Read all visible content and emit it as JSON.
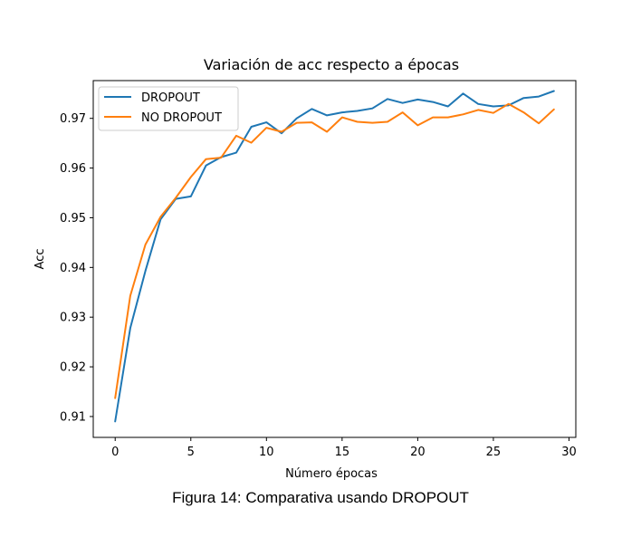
{
  "caption": "Figura 14: Comparativa usando DROPOUT",
  "chart_data": {
    "type": "line",
    "title": "Variación de acc respecto a épocas",
    "xlabel": "Número épocas",
    "ylabel": "Acc",
    "xlim": [
      -1.45,
      30.45
    ],
    "ylim": [
      0.9058,
      0.9776
    ],
    "xticks": [
      0,
      5,
      10,
      15,
      20,
      25,
      30
    ],
    "yticks": [
      0.91,
      0.92,
      0.93,
      0.94,
      0.95,
      0.96,
      0.97
    ],
    "ytick_labels": [
      "0.91",
      "0.92",
      "0.93",
      "0.94",
      "0.95",
      "0.96",
      "0.97"
    ],
    "grid": false,
    "legend": "upper left",
    "x": [
      0,
      1,
      2,
      3,
      4,
      5,
      6,
      7,
      8,
      9,
      10,
      11,
      12,
      13,
      14,
      15,
      16,
      17,
      18,
      19,
      20,
      21,
      22,
      23,
      24,
      25,
      26,
      27,
      28,
      29
    ],
    "series": [
      {
        "name": "DROPOUT",
        "color": "#1f77b4",
        "values": [
          0.909,
          0.9278,
          0.9393,
          0.9497,
          0.9538,
          0.9543,
          0.9605,
          0.9622,
          0.9631,
          0.9683,
          0.9692,
          0.967,
          0.97,
          0.9719,
          0.9706,
          0.9712,
          0.9715,
          0.972,
          0.9739,
          0.9731,
          0.9738,
          0.9733,
          0.9724,
          0.975,
          0.9729,
          0.9724,
          0.9726,
          0.9741,
          0.9744,
          0.9755
        ]
      },
      {
        "name": "NO DROPOUT",
        "color": "#ff7f0e",
        "values": [
          0.9137,
          0.9343,
          0.9446,
          0.9502,
          0.954,
          0.9582,
          0.9618,
          0.9621,
          0.9665,
          0.9651,
          0.9681,
          0.9673,
          0.9691,
          0.9692,
          0.9673,
          0.9702,
          0.9693,
          0.9691,
          0.9693,
          0.9712,
          0.9686,
          0.9702,
          0.9702,
          0.9708,
          0.9717,
          0.9711,
          0.9729,
          0.9712,
          0.969,
          0.9718
        ]
      }
    ]
  }
}
